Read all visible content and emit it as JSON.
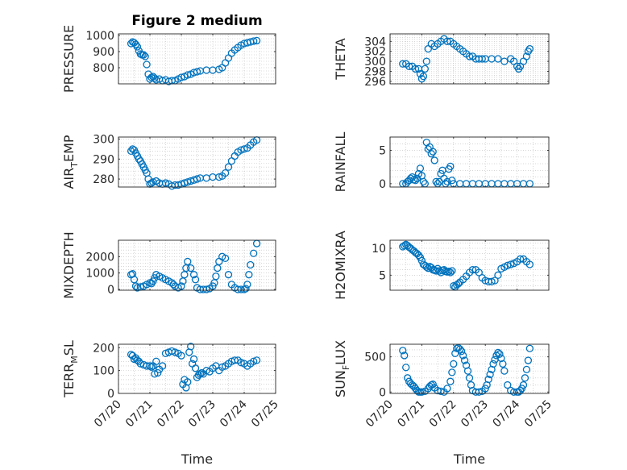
{
  "colors": {
    "marker": "#0072BD",
    "axis": "#262626",
    "grid": "#bdbdbd"
  },
  "chart_data": [
    {
      "type": "scatter",
      "title": "Figure 2 medium",
      "ylabel": "PRESSURE",
      "ylabel_sub": "",
      "ylabel_tail": "",
      "ylim": [
        700,
        1010
      ],
      "yticks": [
        800,
        900,
        1000
      ],
      "xlim": [
        0,
        5
      ],
      "xticks": [
        0,
        1,
        2,
        3,
        4,
        5
      ],
      "xticklabels": [
        "07/20",
        "07/21",
        "07/22",
        "07/23",
        "07/24",
        "07/25"
      ],
      "show_xticklabels": false,
      "xlabel": "",
      "x": [
        0.4,
        0.45,
        0.5,
        0.55,
        0.6,
        0.65,
        0.7,
        0.75,
        0.8,
        0.85,
        0.9,
        0.95,
        1.0,
        1.05,
        1.1,
        1.15,
        1.2,
        1.3,
        1.4,
        1.5,
        1.6,
        1.7,
        1.8,
        1.9,
        2.0,
        2.1,
        2.2,
        2.3,
        2.4,
        2.5,
        2.6,
        2.8,
        3.0,
        3.2,
        3.3,
        3.4,
        3.5,
        3.6,
        3.7,
        3.8,
        3.9,
        4.0,
        4.1,
        4.2,
        4.3,
        4.4
      ],
      "y": [
        950,
        960,
        955,
        945,
        930,
        905,
        885,
        880,
        880,
        870,
        820,
        760,
        730,
        740,
        745,
        735,
        725,
        730,
        720,
        725,
        715,
        720,
        720,
        730,
        740,
        745,
        755,
        760,
        770,
        775,
        780,
        785,
        785,
        790,
        800,
        830,
        860,
        890,
        910,
        925,
        940,
        950,
        955,
        960,
        965,
        968
      ]
    },
    {
      "type": "scatter",
      "title": "",
      "ylabel": "THETA",
      "ylabel_sub": "",
      "ylabel_tail": "",
      "ylim": [
        295.5,
        305.5
      ],
      "yticks": [
        296,
        298,
        300,
        302,
        304
      ],
      "xlim": [
        0,
        5
      ],
      "xticks": [
        0,
        1,
        2,
        3,
        4,
        5
      ],
      "xticklabels": [
        "07/20",
        "07/21",
        "07/22",
        "07/23",
        "07/24",
        "07/25"
      ],
      "show_xticklabels": false,
      "xlabel": "",
      "x": [
        0.4,
        0.5,
        0.6,
        0.7,
        0.8,
        0.9,
        0.95,
        1.0,
        1.05,
        1.1,
        1.15,
        1.2,
        1.3,
        1.4,
        1.5,
        1.6,
        1.7,
        1.8,
        1.9,
        2.0,
        2.1,
        2.2,
        2.3,
        2.4,
        2.5,
        2.6,
        2.7,
        2.8,
        2.9,
        3.0,
        3.2,
        3.4,
        3.6,
        3.8,
        3.9,
        4.0,
        4.05,
        4.1,
        4.2,
        4.3,
        4.35,
        4.4
      ],
      "y": [
        299.5,
        299.5,
        299,
        299,
        298.5,
        298.5,
        297.5,
        296.5,
        297,
        298.5,
        300,
        302.5,
        303.5,
        303,
        303.5,
        304,
        304.5,
        304,
        304,
        303.5,
        303,
        302.5,
        302,
        301.5,
        301,
        301,
        300.5,
        300.5,
        300.5,
        300.5,
        300.5,
        300.5,
        300,
        300.5,
        300,
        299,
        298.5,
        299,
        300,
        301,
        302,
        302.5
      ]
    },
    {
      "type": "scatter",
      "title": "",
      "ylabel": "AIR",
      "ylabel_sub": "T",
      "ylabel_tail": "EMP",
      "ylim": [
        276,
        301
      ],
      "yticks": [
        280,
        290,
        300
      ],
      "xlim": [
        0,
        5
      ],
      "xticks": [
        0,
        1,
        2,
        3,
        4,
        5
      ],
      "xticklabels": [
        "07/20",
        "07/21",
        "07/22",
        "07/23",
        "07/24",
        "07/25"
      ],
      "show_xticklabels": false,
      "xlabel": "",
      "x": [
        0.4,
        0.45,
        0.5,
        0.55,
        0.6,
        0.65,
        0.7,
        0.75,
        0.8,
        0.85,
        0.9,
        0.95,
        1.0,
        1.05,
        1.1,
        1.2,
        1.3,
        1.4,
        1.5,
        1.6,
        1.7,
        1.8,
        1.9,
        2.0,
        2.1,
        2.2,
        2.3,
        2.4,
        2.5,
        2.6,
        2.8,
        3.0,
        3.2,
        3.3,
        3.4,
        3.5,
        3.6,
        3.7,
        3.8,
        3.9,
        4.0,
        4.1,
        4.2,
        4.3,
        4.4
      ],
      "y": [
        294,
        295,
        294.5,
        293,
        291.5,
        290,
        289,
        287.5,
        286,
        284.5,
        283,
        280,
        277.5,
        278,
        278.5,
        279,
        278,
        277.5,
        278,
        277.5,
        276.5,
        277,
        277,
        277.5,
        278,
        278.5,
        279,
        279.5,
        280,
        280.5,
        280.5,
        281,
        281,
        281.5,
        283,
        286,
        289,
        291.5,
        293.5,
        294.5,
        295,
        295.5,
        297,
        298.5,
        299.5
      ]
    },
    {
      "type": "scatter",
      "title": "",
      "ylabel": "RAINFALL",
      "ylabel_sub": "",
      "ylabel_tail": "",
      "ylim": [
        -0.5,
        7
      ],
      "yticks": [
        0,
        5
      ],
      "xlim": [
        0,
        5
      ],
      "xticks": [
        0,
        1,
        2,
        3,
        4,
        5
      ],
      "xticklabels": [
        "07/20",
        "07/21",
        "07/22",
        "07/23",
        "07/24",
        "07/25"
      ],
      "show_xticklabels": false,
      "xlabel": "",
      "x": [
        0.4,
        0.5,
        0.55,
        0.6,
        0.65,
        0.7,
        0.75,
        0.8,
        0.85,
        0.9,
        0.95,
        1.0,
        1.05,
        1.1,
        1.15,
        1.2,
        1.25,
        1.3,
        1.35,
        1.4,
        1.45,
        1.5,
        1.55,
        1.6,
        1.65,
        1.7,
        1.75,
        1.8,
        1.85,
        1.9,
        1.95,
        2.0,
        2.2,
        2.4,
        2.6,
        2.8,
        3.0,
        3.2,
        3.4,
        3.6,
        3.8,
        4.0,
        4.2,
        4.4
      ],
      "y": [
        0,
        0,
        0.3,
        0.5,
        0.8,
        1.0,
        0.6,
        0.5,
        0.8,
        1.5,
        2.3,
        1.2,
        0.3,
        0,
        6.2,
        5.2,
        5.5,
        4.5,
        4.8,
        3.5,
        0.3,
        0,
        0.3,
        1.5,
        2.0,
        0.8,
        0,
        0.3,
        2.2,
        2.6,
        0.5,
        0,
        0,
        0,
        0,
        0,
        0,
        0,
        0,
        0,
        0,
        0,
        0,
        0
      ]
    },
    {
      "type": "scatter",
      "title": "",
      "ylabel": "MIXDEPTH",
      "ylabel_sub": "",
      "ylabel_tail": "",
      "ylim": [
        -50,
        3000
      ],
      "yticks": [
        0,
        1000,
        2000
      ],
      "xlim": [
        0,
        5
      ],
      "xticks": [
        0,
        1,
        2,
        3,
        4,
        5
      ],
      "xticklabels": [
        "07/20",
        "07/21",
        "07/22",
        "07/23",
        "07/24",
        "07/25"
      ],
      "show_xticklabels": false,
      "xlabel": "",
      "x": [
        0.4,
        0.45,
        0.5,
        0.55,
        0.6,
        0.7,
        0.8,
        0.9,
        1.0,
        1.05,
        1.1,
        1.15,
        1.2,
        1.3,
        1.4,
        1.5,
        1.6,
        1.7,
        1.75,
        1.8,
        1.9,
        2.0,
        2.05,
        2.1,
        2.15,
        2.2,
        2.3,
        2.4,
        2.45,
        2.5,
        2.6,
        2.7,
        2.8,
        2.9,
        3.0,
        3.05,
        3.1,
        3.15,
        3.2,
        3.3,
        3.4,
        3.5,
        3.6,
        3.7,
        3.8,
        3.9,
        4.0,
        4.05,
        4.1,
        4.15,
        4.2,
        4.3,
        4.4
      ],
      "y": [
        900,
        950,
        600,
        200,
        100,
        150,
        200,
        300,
        400,
        350,
        500,
        700,
        900,
        800,
        700,
        600,
        500,
        400,
        300,
        200,
        100,
        200,
        500,
        900,
        1300,
        1700,
        1300,
        900,
        600,
        100,
        0,
        0,
        0,
        50,
        200,
        400,
        800,
        1300,
        1700,
        2000,
        1900,
        900,
        300,
        100,
        0,
        0,
        0,
        50,
        300,
        900,
        1500,
        2200,
        2800
      ]
    },
    {
      "type": "scatter",
      "title": "",
      "ylabel": "H2OMIXRA",
      "ylabel_sub": "",
      "ylabel_tail": "",
      "ylim": [
        2.2,
        11.5
      ],
      "yticks": [
        5,
        10
      ],
      "xlim": [
        0,
        5
      ],
      "xticks": [
        0,
        1,
        2,
        3,
        4,
        5
      ],
      "xticklabels": [
        "07/20",
        "07/21",
        "07/22",
        "07/23",
        "07/24",
        "07/25"
      ],
      "show_xticklabels": false,
      "xlabel": "",
      "x": [
        0.4,
        0.45,
        0.5,
        0.55,
        0.6,
        0.65,
        0.7,
        0.75,
        0.8,
        0.85,
        0.9,
        0.95,
        1.0,
        1.05,
        1.1,
        1.15,
        1.2,
        1.25,
        1.3,
        1.35,
        1.4,
        1.45,
        1.5,
        1.55,
        1.6,
        1.65,
        1.7,
        1.75,
        1.8,
        1.85,
        1.9,
        1.95,
        2.0,
        2.05,
        2.1,
        2.15,
        2.2,
        2.3,
        2.4,
        2.5,
        2.6,
        2.7,
        2.8,
        2.9,
        3.0,
        3.1,
        3.2,
        3.3,
        3.4,
        3.5,
        3.6,
        3.7,
        3.8,
        3.9,
        4.0,
        4.1,
        4.2,
        4.3,
        4.4
      ],
      "y": [
        10.3,
        10.5,
        10.7,
        10.5,
        10.2,
        10,
        9.7,
        9.5,
        9.2,
        9,
        8.7,
        8.3,
        7.7,
        7,
        6.8,
        6.5,
        6.3,
        6.6,
        6.4,
        6,
        5.9,
        5.8,
        6.2,
        5.8,
        5.5,
        5.9,
        6,
        5.7,
        5.6,
        5.7,
        5.5,
        5.8,
        3,
        2.8,
        3.2,
        3.4,
        3.7,
        4.2,
        4.8,
        5.5,
        6,
        6,
        5.5,
        4.5,
        4,
        3.8,
        3.8,
        4,
        5,
        6.2,
        6.5,
        6.8,
        7,
        7.2,
        7.5,
        8,
        8,
        7.5,
        7
      ]
    },
    {
      "type": "scatter",
      "title": "",
      "ylabel": "TERR",
      "ylabel_sub": "M",
      "ylabel_tail": "SL",
      "ylim": [
        0,
        215
      ],
      "yticks": [
        0,
        100,
        200
      ],
      "xlim": [
        0,
        5
      ],
      "xticks": [
        0,
        1,
        2,
        3,
        4,
        5
      ],
      "xticklabels": [
        "07/20",
        "07/21",
        "07/22",
        "07/23",
        "07/24",
        "07/25"
      ],
      "show_xticklabels": true,
      "xlabel": "Time",
      "x": [
        0.4,
        0.45,
        0.5,
        0.55,
        0.6,
        0.65,
        0.7,
        0.8,
        0.9,
        1.0,
        1.05,
        1.1,
        1.15,
        1.2,
        1.25,
        1.3,
        1.4,
        1.5,
        1.6,
        1.7,
        1.8,
        1.9,
        2.0,
        2.05,
        2.1,
        2.15,
        2.2,
        2.25,
        2.3,
        2.35,
        2.4,
        2.45,
        2.5,
        2.55,
        2.6,
        2.65,
        2.7,
        2.8,
        2.9,
        3.0,
        3.1,
        3.2,
        3.3,
        3.4,
        3.5,
        3.6,
        3.7,
        3.8,
        3.9,
        4.0,
        4.1,
        4.2,
        4.3,
        4.4
      ],
      "y": [
        170,
        165,
        150,
        155,
        145,
        140,
        130,
        125,
        120,
        120,
        115,
        120,
        85,
        140,
        90,
        105,
        120,
        175,
        180,
        185,
        180,
        175,
        165,
        40,
        60,
        25,
        50,
        180,
        205,
        130,
        150,
        110,
        70,
        80,
        85,
        90,
        85,
        100,
        95,
        110,
        120,
        100,
        115,
        120,
        130,
        140,
        145,
        145,
        135,
        130,
        120,
        130,
        140,
        145
      ]
    },
    {
      "type": "scatter",
      "title": "",
      "ylabel": "SUN",
      "ylabel_sub": "F",
      "ylabel_tail": "LUX",
      "ylim": [
        -20,
        680
      ],
      "yticks": [
        0,
        500
      ],
      "xlim": [
        0,
        5
      ],
      "xticks": [
        0,
        1,
        2,
        3,
        4,
        5
      ],
      "xticklabels": [
        "07/20",
        "07/21",
        "07/22",
        "07/23",
        "07/24",
        "07/25"
      ],
      "show_xticklabels": true,
      "xlabel": "Time",
      "x": [
        0.4,
        0.45,
        0.5,
        0.55,
        0.6,
        0.65,
        0.7,
        0.75,
        0.8,
        0.85,
        0.9,
        0.95,
        1.0,
        1.1,
        1.2,
        1.25,
        1.3,
        1.35,
        1.4,
        1.5,
        1.6,
        1.7,
        1.8,
        1.9,
        1.95,
        2.0,
        2.05,
        2.1,
        2.15,
        2.2,
        2.25,
        2.3,
        2.35,
        2.4,
        2.45,
        2.5,
        2.55,
        2.6,
        2.7,
        2.8,
        2.9,
        3.0,
        3.05,
        3.1,
        3.15,
        3.2,
        3.25,
        3.3,
        3.35,
        3.4,
        3.45,
        3.5,
        3.55,
        3.6,
        3.7,
        3.8,
        3.9,
        4.0,
        4.05,
        4.1,
        4.15,
        4.2,
        4.25,
        4.3,
        4.35,
        4.4
      ],
      "y": [
        590,
        520,
        350,
        200,
        150,
        120,
        100,
        80,
        50,
        20,
        0,
        0,
        0,
        10,
        50,
        80,
        100,
        110,
        60,
        20,
        10,
        0,
        50,
        150,
        280,
        400,
        550,
        620,
        630,
        610,
        580,
        520,
        450,
        380,
        300,
        200,
        100,
        20,
        0,
        0,
        10,
        50,
        100,
        180,
        250,
        320,
        400,
        460,
        520,
        560,
        540,
        480,
        400,
        300,
        100,
        20,
        0,
        0,
        0,
        20,
        50,
        100,
        200,
        320,
        450,
        620
      ]
    }
  ]
}
